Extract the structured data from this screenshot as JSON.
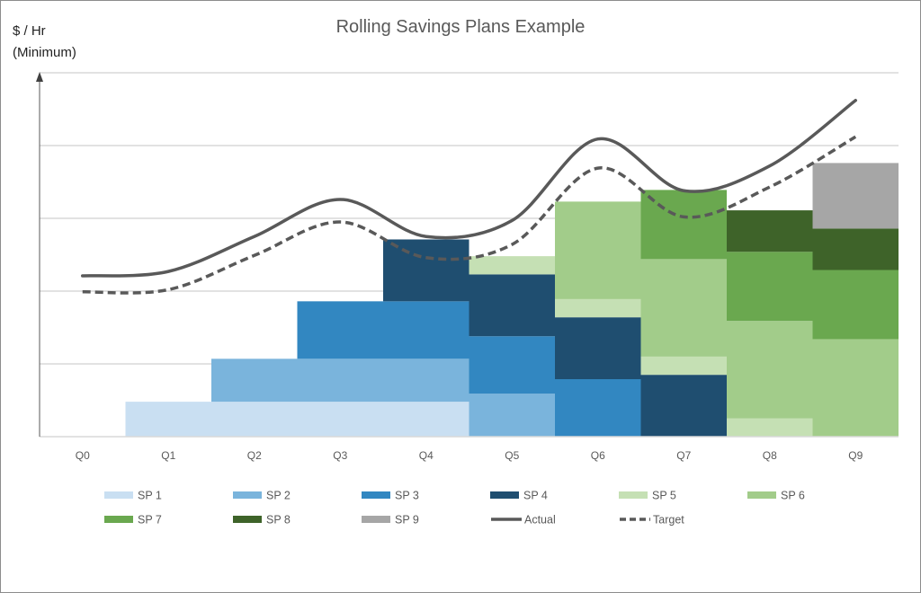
{
  "chart_data": {
    "type": "bar",
    "stacked": true,
    "title": "Rolling Savings Plans Example",
    "ylabel": [
      "$ / Hr",
      "(Minimum)"
    ],
    "xlabel": "",
    "ylim": [
      0,
      50
    ],
    "y_tick_labels": false,
    "grid": true,
    "legend_position": "bottom",
    "categories": [
      "Q0",
      "Q1",
      "Q2",
      "Q3",
      "Q4",
      "Q5",
      "Q6",
      "Q7",
      "Q8",
      "Q9"
    ],
    "series": [
      {
        "name": "SP 1",
        "color": "#c9dff2",
        "values": [
          0,
          4.8,
          4.8,
          4.8,
          4.8,
          0,
          0,
          0,
          0,
          0
        ]
      },
      {
        "name": "SP 2",
        "color": "#7ab4dc",
        "values": [
          0,
          0,
          5.9,
          5.9,
          5.9,
          5.9,
          0,
          0,
          0,
          0
        ]
      },
      {
        "name": "SP 3",
        "color": "#3287c1",
        "values": [
          0,
          0,
          0,
          7.9,
          7.9,
          7.9,
          7.9,
          0,
          0,
          0
        ]
      },
      {
        "name": "SP 4",
        "color": "#1f4e70",
        "values": [
          0,
          0,
          0,
          0,
          8.5,
          8.5,
          8.5,
          8.5,
          0,
          0
        ]
      },
      {
        "name": "SP 5",
        "color": "#c5e0b4",
        "values": [
          0,
          0,
          0,
          0,
          0,
          2.5,
          2.5,
          2.5,
          2.5,
          0
        ]
      },
      {
        "name": "SP 6",
        "color": "#a2cc8a",
        "values": [
          0,
          0,
          0,
          0,
          0,
          0,
          13.4,
          13.4,
          13.4,
          13.4
        ]
      },
      {
        "name": "SP 7",
        "color": "#6aa84f",
        "values": [
          0,
          0,
          0,
          0,
          0,
          0,
          0,
          9.5,
          9.5,
          9.5
        ]
      },
      {
        "name": "SP 8",
        "color": "#3e6329",
        "values": [
          0,
          0,
          0,
          0,
          0,
          0,
          0,
          0,
          5.7,
          5.7
        ]
      },
      {
        "name": "SP 9",
        "color": "#a6a6a6",
        "values": [
          0,
          0,
          0,
          0,
          0,
          0,
          0,
          0,
          0,
          9.0
        ]
      }
    ],
    "lines": [
      {
        "name": "Actual",
        "color": "#595959",
        "style": "solid",
        "values": [
          22.1,
          22.7,
          27.5,
          32.6,
          27.5,
          29.7,
          40.9,
          33.8,
          37.2,
          46.2
        ]
      },
      {
        "name": "Target",
        "color": "#595959",
        "style": "dashed",
        "values": [
          19.9,
          20.2,
          24.9,
          29.5,
          24.6,
          26.4,
          36.9,
          30.2,
          34.3,
          41.2
        ]
      }
    ]
  }
}
